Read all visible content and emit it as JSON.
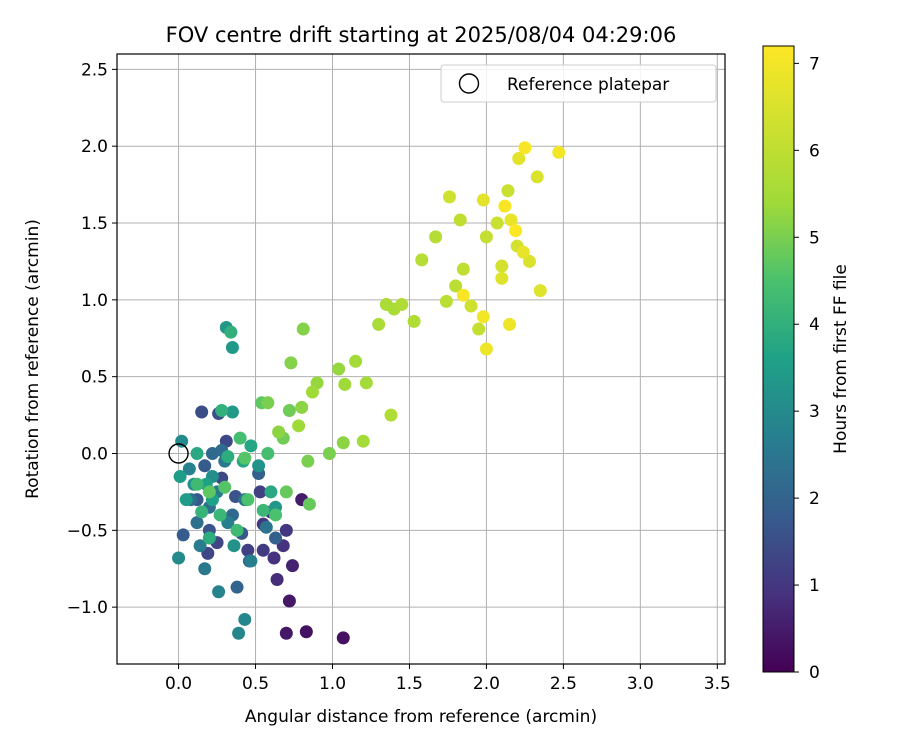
{
  "chart_data": {
    "type": "scatter",
    "title": "FOV centre drift starting at 2025/08/04 04:29:06",
    "xlabel": "Angular distance from reference (arcmin)",
    "ylabel": "Rotation from reference (arcmin)",
    "xlim": [
      -0.4,
      3.55
    ],
    "ylim": [
      -1.37,
      2.6
    ],
    "xticks": [
      0.0,
      0.5,
      1.0,
      1.5,
      2.0,
      2.5,
      3.0,
      3.5
    ],
    "yticks": [
      -1.0,
      -0.5,
      0.0,
      0.5,
      1.0,
      1.5,
      2.0,
      2.5
    ],
    "xtick_labels": [
      "0.0",
      "0.5",
      "1.0",
      "1.5",
      "2.0",
      "2.5",
      "3.0",
      "3.5"
    ],
    "ytick_labels": [
      "−1.0",
      "−0.5",
      "0.0",
      "0.5",
      "1.0",
      "1.5",
      "2.0",
      "2.5"
    ],
    "grid": true,
    "legend": {
      "position": "top-right",
      "entries": [
        "Reference platepar"
      ]
    },
    "reference_point": {
      "x": 0.0,
      "y": 0.0
    },
    "colorbar": {
      "label": "Hours from first FF file",
      "colormap": "viridis",
      "range": [
        0,
        7.2
      ],
      "ticks": [
        0,
        1,
        2,
        3,
        4,
        5,
        6,
        7
      ]
    },
    "points": [
      [
        1.07,
        -1.2,
        0.3
      ],
      [
        0.83,
        -1.16,
        0.3
      ],
      [
        0.7,
        -1.17,
        0.4
      ],
      [
        0.72,
        -0.96,
        0.4
      ],
      [
        0.8,
        -0.3,
        0.5
      ],
      [
        0.74,
        -0.73,
        0.6
      ],
      [
        0.64,
        -0.82,
        0.8
      ],
      [
        0.62,
        -0.68,
        0.9
      ],
      [
        0.68,
        -0.6,
        0.9
      ],
      [
        0.55,
        -0.46,
        1.0
      ],
      [
        0.7,
        -0.5,
        1.0
      ],
      [
        0.55,
        -0.63,
        1.1
      ],
      [
        0.6,
        -0.38,
        1.1
      ],
      [
        0.53,
        -0.25,
        1.2
      ],
      [
        0.45,
        -0.63,
        1.2
      ],
      [
        0.25,
        -0.58,
        1.3
      ],
      [
        0.19,
        -0.65,
        1.3
      ],
      [
        0.28,
        -0.16,
        1.4
      ],
      [
        0.31,
        0.08,
        1.4
      ],
      [
        0.15,
        0.27,
        1.5
      ],
      [
        0.26,
        0.26,
        1.5
      ],
      [
        0.2,
        -0.5,
        1.6
      ],
      [
        0.37,
        -0.28,
        1.6
      ],
      [
        0.41,
        -0.52,
        1.7
      ],
      [
        0.12,
        -0.3,
        1.7
      ],
      [
        0.17,
        -0.08,
        1.8
      ],
      [
        0.03,
        -0.53,
        1.8
      ],
      [
        0.52,
        -0.13,
        1.9
      ],
      [
        0.63,
        -0.55,
        1.9
      ],
      [
        0.38,
        -0.87,
        2.0
      ],
      [
        0.46,
        -0.7,
        2.0
      ],
      [
        0.22,
        0.0,
        2.1
      ],
      [
        0.35,
        -0.4,
        2.1
      ],
      [
        0.08,
        -0.3,
        2.2
      ],
      [
        0.28,
        0.02,
        2.2
      ],
      [
        0.12,
        -0.45,
        2.3
      ],
      [
        0.2,
        -0.35,
        2.3
      ],
      [
        0.43,
        -0.3,
        2.4
      ],
      [
        0.57,
        -0.48,
        2.4
      ],
      [
        0.17,
        -0.75,
        2.5
      ],
      [
        0.3,
        -0.05,
        2.5
      ],
      [
        0.25,
        -0.25,
        2.6
      ],
      [
        0.14,
        -0.6,
        2.6
      ],
      [
        0.32,
        -0.45,
        2.7
      ],
      [
        0.47,
        -0.7,
        2.7
      ],
      [
        0.26,
        -0.9,
        2.8
      ],
      [
        0.07,
        -0.1,
        2.8
      ],
      [
        0.43,
        -1.08,
        2.9
      ],
      [
        0.39,
        -1.17,
        2.9
      ],
      [
        0.0,
        -0.68,
        3.0
      ],
      [
        0.02,
        0.08,
        3.0
      ],
      [
        0.1,
        -0.2,
        3.1
      ],
      [
        0.22,
        -0.15,
        3.1
      ],
      [
        0.36,
        -0.6,
        3.2
      ],
      [
        0.52,
        -0.08,
        3.2
      ],
      [
        0.63,
        -0.35,
        3.3
      ],
      [
        0.31,
        0.82,
        3.3
      ],
      [
        0.35,
        0.69,
        3.4
      ],
      [
        0.35,
        0.27,
        3.4
      ],
      [
        0.05,
        -0.3,
        3.5
      ],
      [
        0.01,
        -0.15,
        3.5
      ],
      [
        0.18,
        -0.2,
        3.6
      ],
      [
        0.22,
        -0.3,
        3.6
      ],
      [
        0.42,
        -0.05,
        3.7
      ],
      [
        0.47,
        0.05,
        3.7
      ],
      [
        0.6,
        -0.25,
        3.8
      ],
      [
        0.12,
        0.0,
        3.8
      ],
      [
        0.2,
        -0.55,
        3.9
      ],
      [
        0.32,
        -0.02,
        3.9
      ],
      [
        0.34,
        0.79,
        4.0
      ],
      [
        0.28,
        0.28,
        4.0
      ],
      [
        0.15,
        -0.38,
        4.1
      ],
      [
        0.27,
        -0.4,
        4.2
      ],
      [
        0.55,
        -0.37,
        4.2
      ],
      [
        0.38,
        -0.5,
        4.3
      ],
      [
        0.12,
        -0.2,
        4.3
      ],
      [
        0.4,
        0.1,
        4.4
      ],
      [
        0.58,
        0.0,
        4.4
      ],
      [
        0.63,
        -0.4,
        4.5
      ],
      [
        0.45,
        -0.3,
        4.5
      ],
      [
        0.43,
        -0.03,
        4.6
      ],
      [
        0.3,
        -0.22,
        4.6
      ],
      [
        0.2,
        -0.25,
        4.7
      ],
      [
        0.54,
        0.33,
        4.7
      ],
      [
        0.7,
        -0.25,
        4.8
      ],
      [
        0.85,
        -0.33,
        4.8
      ],
      [
        0.72,
        0.28,
        4.9
      ],
      [
        0.68,
        0.1,
        4.9
      ],
      [
        0.84,
        -0.05,
        5.0
      ],
      [
        0.98,
        0.0,
        5.0
      ],
      [
        0.58,
        0.33,
        5.0
      ],
      [
        0.73,
        0.59,
        5.1
      ],
      [
        0.81,
        0.81,
        5.1
      ],
      [
        0.65,
        0.14,
        5.2
      ],
      [
        0.8,
        0.3,
        5.2
      ],
      [
        1.07,
        0.07,
        5.2
      ],
      [
        0.9,
        0.46,
        5.3
      ],
      [
        1.04,
        0.55,
        5.3
      ],
      [
        0.78,
        0.18,
        5.4
      ],
      [
        0.87,
        0.4,
        5.4
      ],
      [
        1.08,
        0.45,
        5.4
      ],
      [
        1.15,
        0.6,
        5.5
      ],
      [
        1.2,
        0.08,
        5.5
      ],
      [
        1.22,
        0.46,
        5.5
      ],
      [
        1.3,
        0.84,
        5.6
      ],
      [
        1.35,
        0.97,
        5.6
      ],
      [
        1.4,
        0.94,
        5.6
      ],
      [
        1.38,
        0.25,
        5.7
      ],
      [
        1.45,
        0.97,
        5.7
      ],
      [
        1.53,
        0.86,
        5.7
      ],
      [
        1.58,
        1.26,
        5.8
      ],
      [
        1.67,
        1.41,
        5.8
      ],
      [
        1.74,
        0.99,
        5.9
      ],
      [
        1.8,
        1.09,
        5.9
      ],
      [
        1.85,
        1.2,
        6.0
      ],
      [
        1.83,
        1.52,
        6.0
      ],
      [
        1.95,
        0.81,
        6.1
      ],
      [
        2.0,
        1.41,
        6.1
      ],
      [
        2.07,
        1.5,
        6.2
      ],
      [
        2.14,
        1.71,
        6.2
      ],
      [
        1.76,
        1.67,
        6.3
      ],
      [
        1.9,
        0.96,
        6.3
      ],
      [
        2.1,
        1.22,
        6.4
      ],
      [
        2.2,
        1.35,
        6.4
      ],
      [
        2.28,
        1.25,
        6.5
      ],
      [
        2.33,
        1.8,
        6.5
      ],
      [
        2.35,
        1.06,
        6.6
      ],
      [
        2.1,
        1.14,
        6.6
      ],
      [
        1.98,
        1.65,
        6.7
      ],
      [
        2.21,
        1.92,
        6.7
      ],
      [
        2.24,
        1.31,
        6.8
      ],
      [
        2.16,
        1.52,
        6.8
      ],
      [
        2.0,
        0.68,
        6.9
      ],
      [
        2.15,
        0.84,
        6.9
      ],
      [
        1.98,
        0.89,
        7.0
      ],
      [
        2.47,
        1.96,
        7.0
      ],
      [
        2.12,
        1.61,
        7.1
      ],
      [
        1.85,
        1.03,
        7.1
      ],
      [
        2.25,
        1.99,
        7.1
      ],
      [
        2.19,
        1.45,
        7.2
      ]
    ]
  }
}
